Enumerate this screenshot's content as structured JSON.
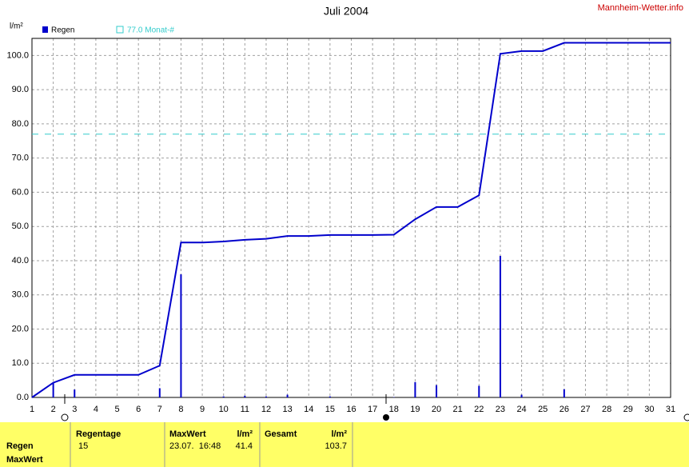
{
  "chart_data": {
    "type": "bar",
    "title": "Juli 2004",
    "source": "Mannheim-Wetter.info",
    "y_unit": "l/m²",
    "x": [
      1,
      2,
      3,
      4,
      5,
      6,
      7,
      8,
      9,
      10,
      11,
      12,
      13,
      14,
      15,
      16,
      17,
      18,
      19,
      20,
      21,
      22,
      23,
      24,
      25,
      26,
      27,
      28,
      29,
      30,
      31
    ],
    "xlim": [
      1,
      31
    ],
    "xticks": [
      1,
      2,
      3,
      4,
      5,
      6,
      7,
      8,
      9,
      10,
      11,
      12,
      13,
      14,
      15,
      16,
      17,
      18,
      19,
      20,
      21,
      22,
      23,
      24,
      25,
      26,
      27,
      28,
      29,
      30,
      31
    ],
    "ylim": [
      0,
      105
    ],
    "yticks": [
      {
        "value": 0,
        "label": "0.0"
      },
      {
        "value": 10,
        "label": "10.0"
      },
      {
        "value": 20,
        "label": "20.0"
      },
      {
        "value": 30,
        "label": "30.0"
      },
      {
        "value": 40,
        "label": "40.0"
      },
      {
        "value": 50,
        "label": "50.0"
      },
      {
        "value": 60,
        "label": "60.0"
      },
      {
        "value": 70,
        "label": "70.0"
      },
      {
        "value": 80,
        "label": "80.0"
      },
      {
        "value": 90,
        "label": "90.0"
      },
      {
        "value": 100,
        "label": "100.0"
      }
    ],
    "grid": true,
    "series": [
      {
        "name": "Regen",
        "color": "#0000cc",
        "values": [
          0,
          4.3,
          2.3,
          0,
          0,
          0,
          2.7,
          36.0,
          0,
          0.3,
          0.5,
          0.3,
          0.8,
          0,
          0.3,
          0,
          0,
          0.1,
          4.5,
          3.6,
          0,
          3.4,
          41.4,
          0.8,
          0,
          2.4,
          0,
          0,
          0,
          0,
          0
        ]
      }
    ],
    "cumulative": {
      "color": "#0000cc",
      "values": [
        0,
        4.3,
        6.6,
        6.6,
        6.6,
        6.6,
        9.3,
        45.3,
        45.3,
        45.6,
        46.1,
        46.4,
        47.2,
        47.2,
        47.5,
        47.5,
        47.5,
        47.6,
        52.1,
        55.7,
        55.7,
        59.1,
        100.5,
        101.3,
        101.3,
        103.7,
        103.7,
        103.7,
        103.7,
        103.7,
        103.7
      ]
    },
    "monthly_mean": {
      "name": "77.0 Monat-#",
      "value": 77.0,
      "color": "#33cccc"
    }
  },
  "summary": {
    "row_labels": [
      "Regen",
      "MaxWert"
    ],
    "rain_days": {
      "header": "Regentage",
      "value": 15
    },
    "max": {
      "header": "MaxWert",
      "unit": "l/m²",
      "date": "23.07.  16:48",
      "value": 41.4
    },
    "total": {
      "header": "Gesamt",
      "unit": "l/m²",
      "value": 103.7
    }
  }
}
